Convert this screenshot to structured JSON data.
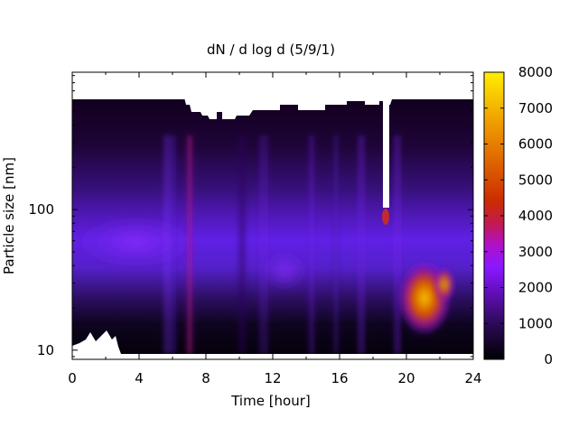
{
  "chart_data": {
    "type": "heatmap",
    "title": "dN / d log d (5/9/1)",
    "xlabel": "Time [hour]",
    "ylabel": "Particle size [nm]",
    "xlim": [
      0,
      24
    ],
    "ylim": [
      8.6,
      950
    ],
    "y_scale": "log",
    "x_ticks": [
      "0",
      "4",
      "8",
      "12",
      "16",
      "20",
      "24"
    ],
    "y_ticks": [
      "10",
      "100"
    ],
    "colorbar": {
      "range": [
        0,
        8000
      ],
      "ticks": [
        "0",
        "1000",
        "2000",
        "3000",
        "4000",
        "5000",
        "6000",
        "7000",
        "8000"
      ],
      "colormap": "black-purple-red-yellow"
    },
    "features": [
      {
        "description": "broad mode near 50 nm",
        "x_range": [
          0,
          18.5
        ],
        "y_center": 50,
        "value": 1800
      },
      {
        "description": "nucleation/growth event",
        "x_range": [
          19.7,
          23
        ],
        "y_center": 25,
        "value": 7200
      },
      {
        "description": "narrow band near 100 nm",
        "x": 18.8,
        "y": 95,
        "value": 3600
      },
      {
        "description": "upper no-data cutoff",
        "y": 700
      }
    ]
  }
}
